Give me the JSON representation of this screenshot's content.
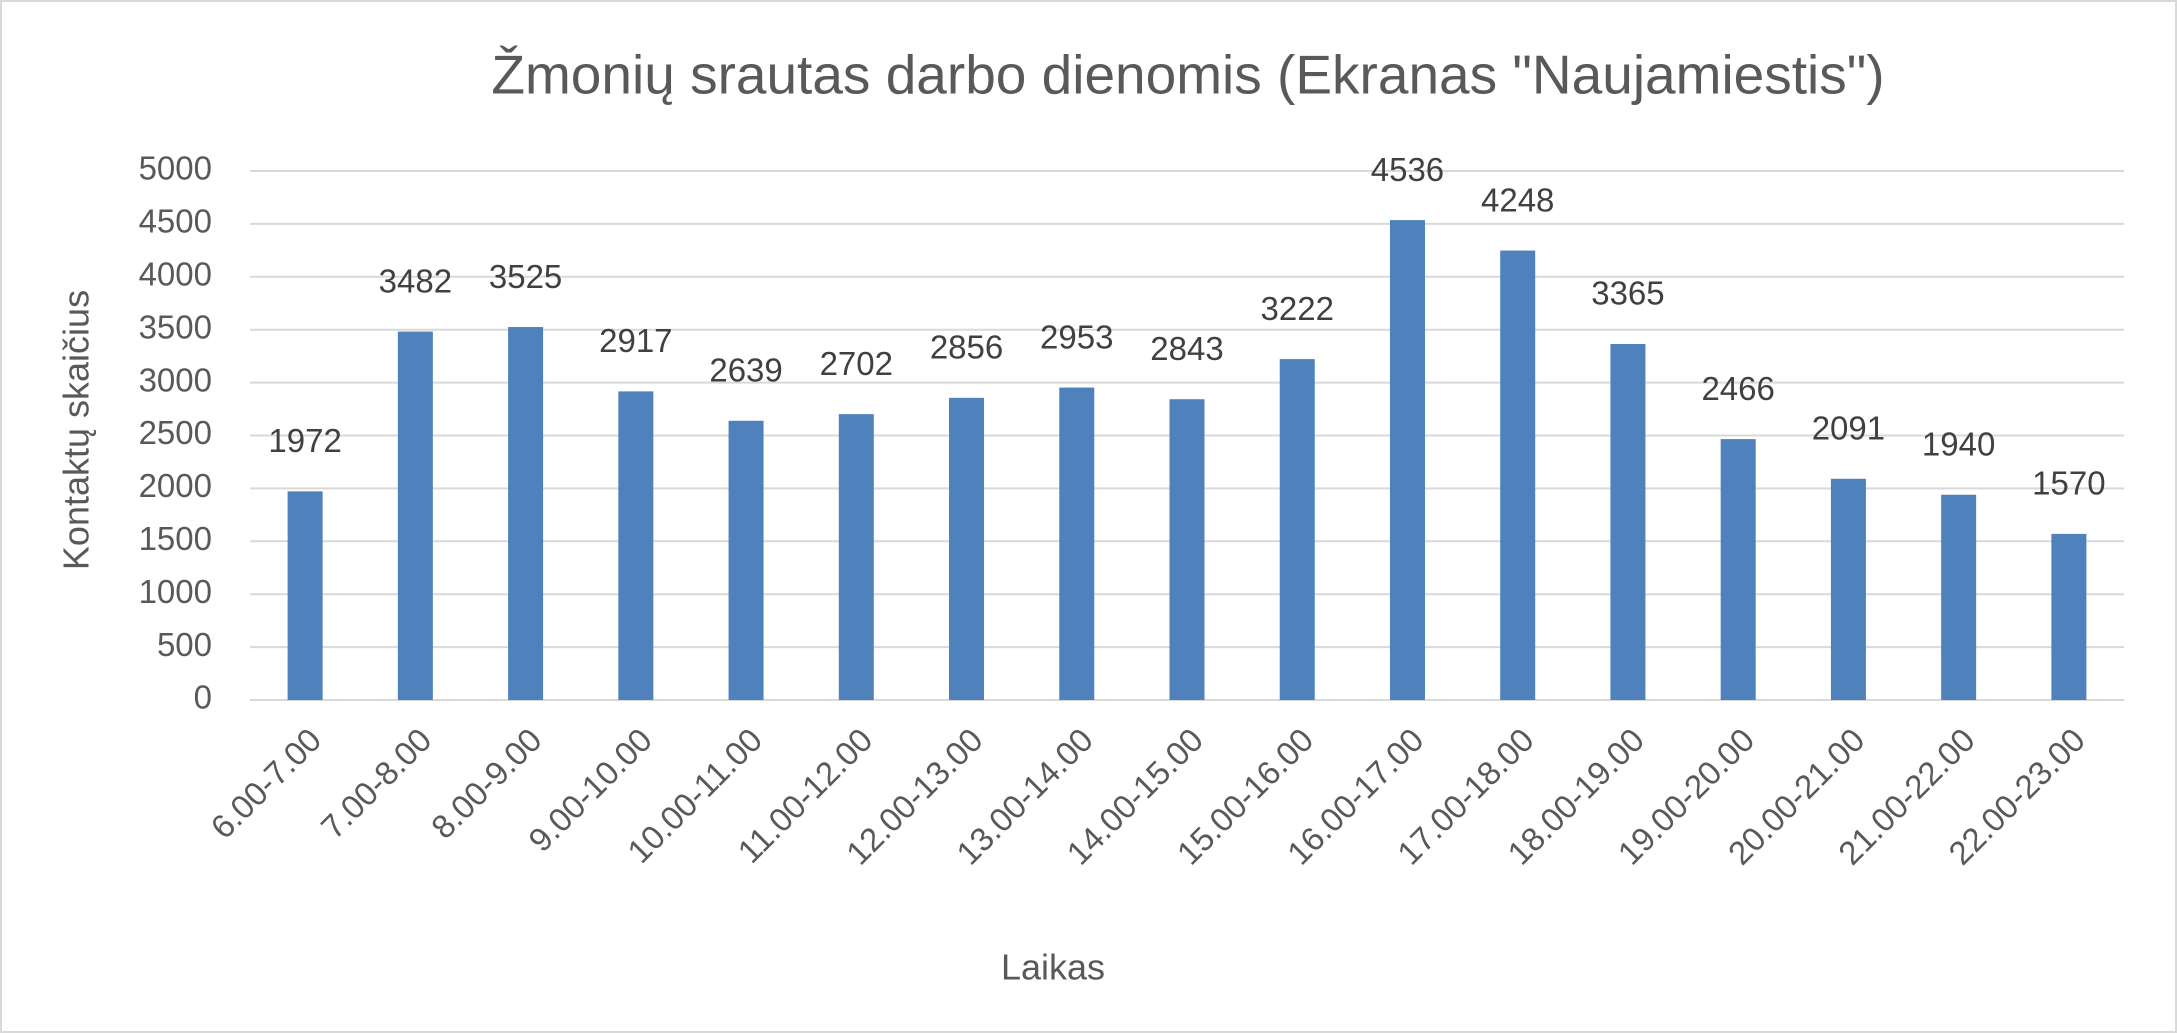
{
  "chart_data": {
    "type": "bar",
    "title": "Žmonių srautas darbo dienomis (Ekranas \"Naujamiestis\")",
    "x_label": "Laikas",
    "y_label": "Kontaktų skaičius",
    "categories": [
      "6.00-7.00",
      "7.00-8.00",
      "8.00-9.00",
      "9.00-10.00",
      "10.00-11.00",
      "11.00-12.00",
      "12.00-13.00",
      "13.00-14.00",
      "14.00-15.00",
      "15.00-16.00",
      "16.00-17.00",
      "17.00-18.00",
      "18.00-19.00",
      "19.00-20.00",
      "20.00-21.00",
      "21.00-22.00",
      "22.00-23.00"
    ],
    "values": [
      1972,
      3482,
      3525,
      2917,
      2639,
      2702,
      2856,
      2953,
      2843,
      3222,
      4536,
      4248,
      3365,
      2466,
      2091,
      1940,
      1570
    ],
    "color": "#4f81bd",
    "ylim": [
      0,
      5000
    ],
    "yticks": [
      0,
      500,
      1000,
      1500,
      2000,
      2500,
      3000,
      3500,
      4000,
      4500,
      5000
    ],
    "grid": true
  }
}
